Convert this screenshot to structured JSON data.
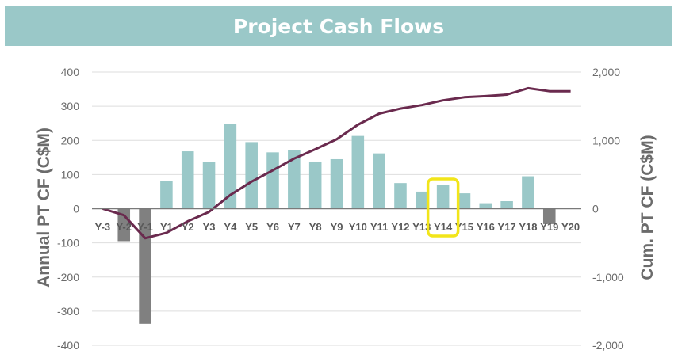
{
  "chart_data": {
    "type": "bar",
    "title": "Project Cash Flows",
    "categories": [
      "Y-3",
      "Y-2",
      "Y-1",
      "Y1",
      "Y2",
      "Y3",
      "Y4",
      "Y5",
      "Y6",
      "Y7",
      "Y8",
      "Y9",
      "Y10",
      "Y11",
      "Y12",
      "Y13",
      "Y14",
      "Y15",
      "Y16",
      "Y17",
      "Y18",
      "Y19",
      "Y20"
    ],
    "series": [
      {
        "name": "Annual PT CF (C$M)",
        "type": "bar",
        "axis": "left",
        "values": [
          0,
          -95,
          -337,
          80,
          168,
          137,
          248,
          195,
          165,
          172,
          138,
          145,
          213,
          162,
          75,
          50,
          70,
          45,
          16,
          22,
          95,
          -45,
          0
        ],
        "colors": {
          "positive": "#9ac8c8",
          "negative": "#808080"
        }
      },
      {
        "name": "Cum. PT CF (C$M)",
        "type": "line",
        "axis": "right",
        "values": [
          0,
          -95,
          -432,
          -352,
          -184,
          -47,
          201,
          396,
          561,
          733,
          871,
          1016,
          1229,
          1391,
          1466,
          1516,
          1586,
          1631,
          1647,
          1669,
          1764,
          1719,
          1719
        ],
        "color": "#6a2a4e"
      }
    ],
    "ylabel": "Annual PT CF (C$M)",
    "ylim": [
      -400,
      400
    ],
    "yticks": [
      "400",
      "300",
      "200",
      "100",
      "0",
      "-100",
      "-200",
      "-300",
      "-400"
    ],
    "y2label": "Cum. PT CF (C$M)",
    "y2lim": [
      -2000,
      2000
    ],
    "y2ticks": [
      "2,000",
      "1,000",
      "0",
      "-1,000",
      "-2,000"
    ],
    "grid": true,
    "highlight": {
      "category": "Y14",
      "color": "#f2e51a"
    }
  }
}
